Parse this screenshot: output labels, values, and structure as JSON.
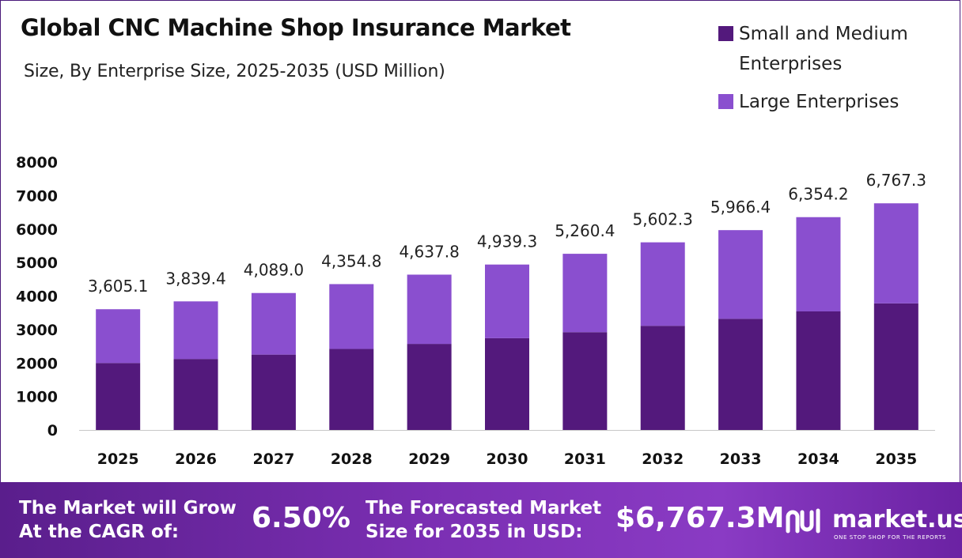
{
  "title": "Global CNC Machine Shop Insurance Market",
  "subtitle": "Size, By Enterprise Size, 2025-2035 (USD Million)",
  "colors": {
    "small_medium": "#53197c",
    "large": "#8a4fcf",
    "axis": "#c8c8c8"
  },
  "legend": [
    {
      "label": "Small and Medium Enterprises"
    },
    {
      "label": "Large Enterprises"
    }
  ],
  "chart_data": {
    "type": "bar",
    "stacked": true,
    "categories": [
      "2025",
      "2026",
      "2027",
      "2028",
      "2029",
      "2030",
      "2031",
      "2032",
      "2033",
      "2034",
      "2035"
    ],
    "series": [
      {
        "name": "Small and Medium Enterprises",
        "values": [
          2000,
          2120,
          2250,
          2420,
          2570,
          2740,
          2920,
          3110,
          3320,
          3540,
          3780
        ]
      },
      {
        "name": "Large Enterprises",
        "values": [
          1605.1,
          1719.4,
          1839.0,
          1934.8,
          2067.8,
          2199.3,
          2340.4,
          2492.3,
          2646.4,
          2814.2,
          2987.3
        ]
      }
    ],
    "totals": [
      3605.1,
      3839.4,
      4089.0,
      4354.8,
      4637.8,
      4939.3,
      5260.4,
      5602.3,
      5966.4,
      6354.2,
      6767.3
    ],
    "total_labels": [
      "3,605.1",
      "3,839.4",
      "4,089.0",
      "4,354.8",
      "4,637.8",
      "4,939.3",
      "5,260.4",
      "5,602.3",
      "5,966.4",
      "6,354.2",
      "6,767.3"
    ],
    "yticks": [
      "0",
      "1000",
      "2000",
      "3000",
      "4000",
      "5000",
      "6000",
      "7000",
      "8000"
    ],
    "ylim": [
      0,
      8000
    ],
    "grid": false,
    "legend_position": "top-right"
  },
  "footer": {
    "cagr_label": "The Market will Grow At the CAGR of:",
    "cagr_value": "6.50%",
    "forecast_label": "The Forecasted Market Size for 2035 in USD:",
    "forecast_value": "$6,767.3M",
    "brand_name": "market.us",
    "brand_tagline": "ONE STOP SHOP FOR THE REPORTS"
  }
}
